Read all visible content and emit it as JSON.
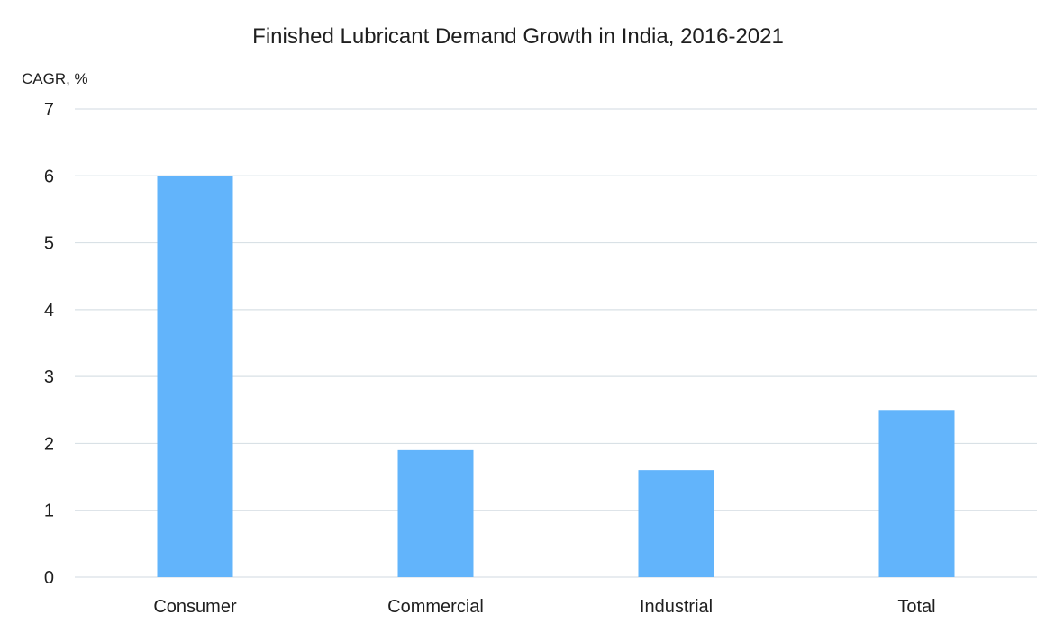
{
  "chart_data": {
    "type": "bar",
    "title": "Finished Lubricant Demand Growth in India, 2016-2021",
    "ylabel": "CAGR, %",
    "xlabel": "",
    "categories": [
      "Consumer",
      "Commercial",
      "Industrial",
      "Total"
    ],
    "values": [
      6.0,
      1.9,
      1.6,
      2.5
    ],
    "ylim": [
      0,
      7
    ],
    "yticks": [
      "0",
      "1",
      "2",
      "3",
      "4",
      "5",
      "6",
      "7"
    ],
    "grid": true,
    "bar_color": "#62b4fb",
    "grid_color": "#d9e1e6"
  }
}
